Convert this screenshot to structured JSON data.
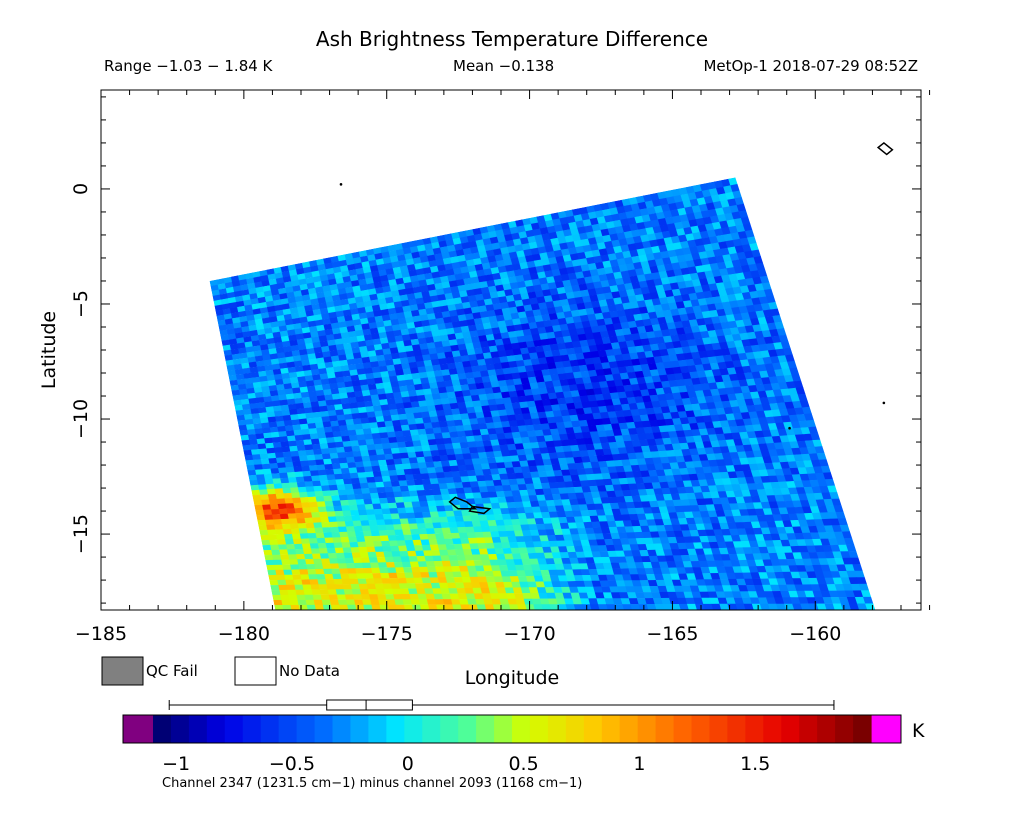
{
  "chart_data": {
    "type": "heatmap",
    "title": "Ash Brightness Temperature Difference",
    "range_text": "Range −1.03 − 1.84 K",
    "mean_text": "Mean −0.138",
    "satellite_text": "MetOp-1 2018-07-29 08:52Z",
    "xlabel": "Longitude",
    "ylabel": "Latitude",
    "xlim": [
      -185,
      -156.3
    ],
    "ylim": [
      -18.3,
      4.3
    ],
    "xticks": [
      -185,
      -180,
      -175,
      -170,
      -165,
      -160
    ],
    "yticks": [
      0,
      -5,
      -10,
      -15
    ],
    "xticklabels": [
      "−185",
      "−180",
      "−175",
      "−170",
      "−165",
      "−160"
    ],
    "yticklabels": [
      "0",
      "−5",
      "−10",
      "−15"
    ],
    "swath_corners": [
      [
        -181.2,
        -4.0
      ],
      [
        -162.8,
        0.5
      ],
      [
        -157.9,
        -18.3
      ],
      [
        -178.9,
        -18.3
      ]
    ],
    "field_trend": "mostly −0.6 to −0.1 K over the swath; warmer 0.3 to 1.8 K in the southwest corner near −180 to −172, −13 to −18",
    "hotspot_max": {
      "lon": -178.8,
      "lat": -13.9,
      "value": 1.84
    },
    "range": {
      "min": -1.03,
      "max": 1.84,
      "mean": -0.138
    },
    "boxplot": {
      "whisker_low": -1.03,
      "q1": -0.35,
      "median": -0.18,
      "q3": 0.02,
      "whisker_high": 1.84
    },
    "colorbar": {
      "min": -1.1,
      "max": 2.0,
      "ticks": [
        -1,
        -0.5,
        0,
        0.5,
        1,
        1.5
      ],
      "ticklabels": [
        "−1",
        "−0.5",
        "0",
        "0.5",
        "1",
        "1.5"
      ],
      "unit": "K",
      "under_color": "#800080",
      "over_color": "#ff00ff",
      "caption": "Channel 2347 (1231.5 cm−1) minus channel 2093 (1168 cm−1)"
    },
    "legend": [
      {
        "label": "QC Fail",
        "color": "#808080"
      },
      {
        "label": "No Data",
        "color": "#ffffff"
      }
    ],
    "coastline_color": "#000000",
    "grid": false
  }
}
